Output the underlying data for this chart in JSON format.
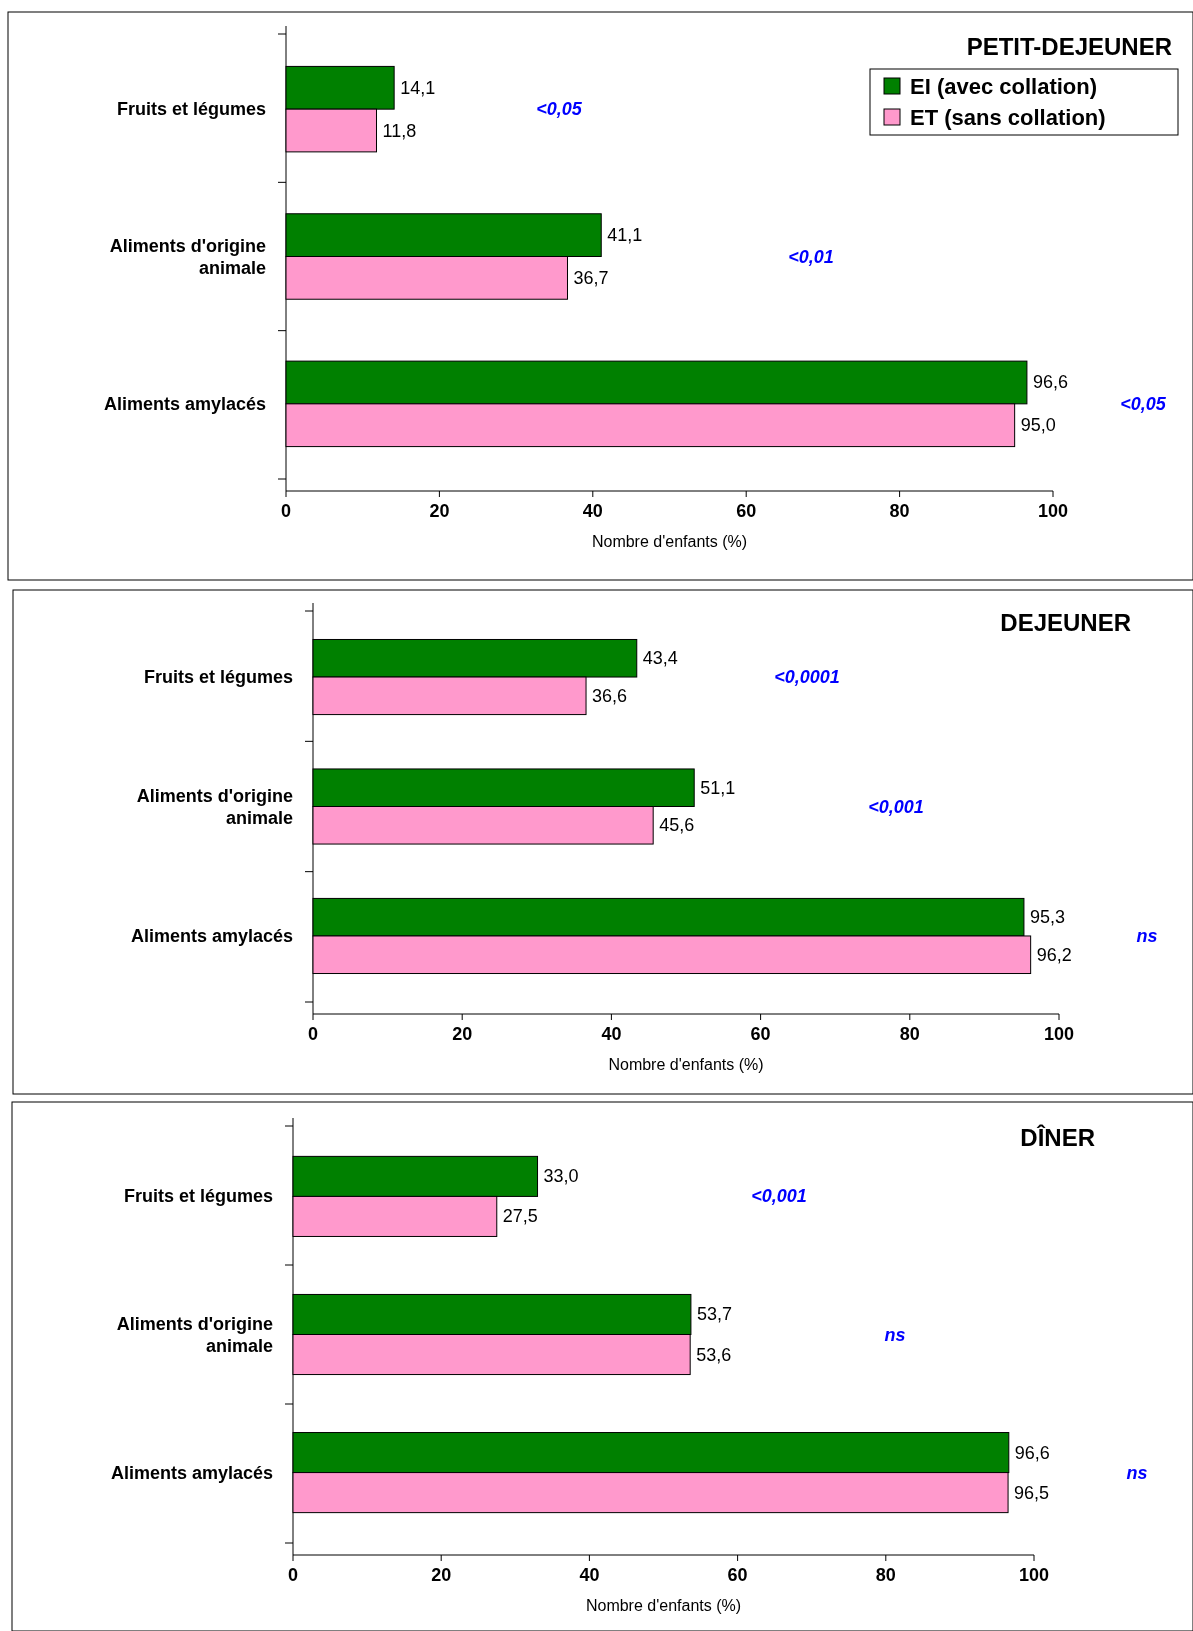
{
  "chart_data": [
    {
      "type": "bar",
      "orientation": "horizontal",
      "title": "PETIT-DEJEUNER",
      "xlabel": "Nombre d'enfants (%)",
      "categories": [
        "Fruits et légumes",
        "Aliments d'origine animale",
        "Aliments amylacés"
      ],
      "series": [
        {
          "name": "EI (avec collation)",
          "color": "#008000",
          "values": [
            14.1,
            41.1,
            96.6
          ],
          "value_labels": [
            "14,1",
            "41,1",
            "96,6"
          ]
        },
        {
          "name": "ET (sans collation)",
          "color": "#ff99cc",
          "values": [
            11.8,
            36.7,
            95.0
          ],
          "value_labels": [
            "11,8",
            "36,7",
            "95,0"
          ]
        }
      ],
      "xlim": [
        0,
        100
      ],
      "xticks": [
        0,
        20,
        40,
        60,
        80,
        100
      ],
      "legend": "top right",
      "annotations": [
        "<0,05",
        "<0,01",
        "<0,05"
      ]
    },
    {
      "type": "bar",
      "orientation": "horizontal",
      "title": "DEJEUNER",
      "xlabel": "Nombre d'enfants (%)",
      "categories": [
        "Fruits et légumes",
        "Aliments d'origine animale",
        "Aliments amylacés"
      ],
      "series": [
        {
          "color": "#008000",
          "values": [
            43.4,
            51.1,
            95.3
          ],
          "value_labels": [
            "43,4",
            "51,1",
            "95,3"
          ]
        },
        {
          "color": "#ff99cc",
          "values": [
            36.6,
            45.6,
            96.2
          ],
          "value_labels": [
            "36,6",
            "45,6",
            "96,2"
          ]
        }
      ],
      "xlim": [
        0,
        100
      ],
      "xticks": [
        0,
        20,
        40,
        60,
        80,
        100
      ],
      "annotations": [
        "<0,0001",
        "<0,001",
        "ns"
      ]
    },
    {
      "type": "bar",
      "orientation": "horizontal",
      "title": "DÎNER",
      "xlabel": "Nombre d'enfants (%)",
      "categories": [
        "Fruits et légumes",
        "Aliments d'origine animale",
        "Aliments amylacés"
      ],
      "series": [
        {
          "color": "#008000",
          "values": [
            33.0,
            53.7,
            96.6
          ],
          "value_labels": [
            "33,0",
            "53,7",
            "96,6"
          ]
        },
        {
          "color": "#ff99cc",
          "values": [
            27.5,
            53.6,
            96.5
          ],
          "value_labels": [
            "27,5",
            "53,6",
            "96,5"
          ]
        }
      ],
      "xlim": [
        0,
        100
      ],
      "xticks": [
        0,
        20,
        40,
        60,
        80,
        100
      ],
      "annotations": [
        "<0,001",
        "ns",
        "ns"
      ]
    }
  ]
}
